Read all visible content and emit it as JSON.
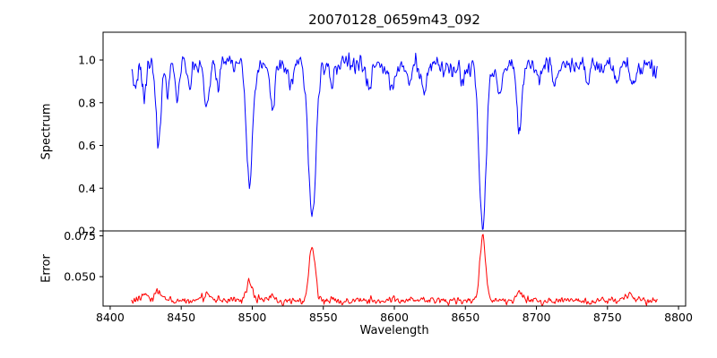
{
  "figure": {
    "title": "20070128_0659m43_092",
    "xlabel": "Wavelength",
    "background_color": "#ffffff",
    "axis_color": "#000000"
  },
  "x_axis": {
    "label": "Wavelength",
    "tick_labels": [
      "8400",
      "8450",
      "8500",
      "8550",
      "8600",
      "8650",
      "8700",
      "8750",
      "8800"
    ],
    "tick_values": [
      8400,
      8450,
      8500,
      8550,
      8600,
      8650,
      8700,
      8750,
      8800
    ],
    "xlim": [
      8395,
      8805
    ]
  },
  "chart_data": [
    {
      "type": "line",
      "name": "spectrum",
      "ylabel": "Spectrum",
      "color": "#0000ff",
      "xlim": [
        8395,
        8805
      ],
      "ylim": [
        0.2,
        1.13
      ],
      "ytick_labels": [
        "0.2",
        "0.4",
        "0.6",
        "0.8",
        "1.0"
      ],
      "ytick_values": [
        0.2,
        0.4,
        0.6,
        0.8,
        1.0
      ],
      "x_start": 8415,
      "x_end": 8785,
      "x_step": 0.5,
      "continuum": 0.975,
      "noise": {
        "seed": 20070128,
        "amplitude": 0.028
      },
      "absorption_lines": [
        {
          "center": 8417.5,
          "depth": 0.1,
          "width": 1.2
        },
        {
          "center": 8424.0,
          "depth": 0.14,
          "width": 1.4
        },
        {
          "center": 8434.0,
          "depth": 0.38,
          "width": 1.6
        },
        {
          "center": 8440.5,
          "depth": 0.12,
          "width": 1.2
        },
        {
          "center": 8447.0,
          "depth": 0.15,
          "width": 1.4
        },
        {
          "center": 8456.0,
          "depth": 0.09,
          "width": 1.2
        },
        {
          "center": 8468.0,
          "depth": 0.2,
          "width": 1.6
        },
        {
          "center": 8476.0,
          "depth": 0.09,
          "width": 1.2
        },
        {
          "center": 8498.0,
          "depth": 0.55,
          "width": 2.2
        },
        {
          "center": 8514.0,
          "depth": 0.21,
          "width": 1.5
        },
        {
          "center": 8527.0,
          "depth": 0.1,
          "width": 1.3
        },
        {
          "center": 8542.1,
          "depth": 0.72,
          "width": 2.6
        },
        {
          "center": 8556.0,
          "depth": 0.08,
          "width": 1.2
        },
        {
          "center": 8582.0,
          "depth": 0.11,
          "width": 1.3
        },
        {
          "center": 8598.0,
          "depth": 0.13,
          "width": 1.4
        },
        {
          "center": 8611.0,
          "depth": 0.1,
          "width": 1.3
        },
        {
          "center": 8621.0,
          "depth": 0.13,
          "width": 1.4
        },
        {
          "center": 8648.0,
          "depth": 0.1,
          "width": 1.3
        },
        {
          "center": 8662.1,
          "depth": 0.75,
          "width": 2.4
        },
        {
          "center": 8674.0,
          "depth": 0.16,
          "width": 1.4
        },
        {
          "center": 8688.0,
          "depth": 0.32,
          "width": 1.7
        },
        {
          "center": 8702.0,
          "depth": 0.08,
          "width": 1.2
        },
        {
          "center": 8712.5,
          "depth": 0.1,
          "width": 1.3
        },
        {
          "center": 8736.0,
          "depth": 0.09,
          "width": 1.3
        },
        {
          "center": 8747.0,
          "depth": 0.07,
          "width": 1.2
        },
        {
          "center": 8757.0,
          "depth": 0.08,
          "width": 1.2
        },
        {
          "center": 8768.0,
          "depth": 0.12,
          "width": 1.4
        }
      ]
    },
    {
      "type": "line",
      "name": "error",
      "ylabel": "Error",
      "color": "#ff0000",
      "xlim": [
        8395,
        8805
      ],
      "ylim": [
        0.032,
        0.078
      ],
      "ytick_labels": [
        "0.050",
        "0.075"
      ],
      "ytick_values": [
        0.05,
        0.075
      ],
      "x_start": 8415,
      "x_end": 8785,
      "x_step": 0.5,
      "baseline": 0.0353,
      "noise": {
        "seed": 659,
        "amplitude": 0.0016
      },
      "peaks": [
        {
          "center": 8424.0,
          "height": 0.004,
          "width": 3.0
        },
        {
          "center": 8434.0,
          "height": 0.006,
          "width": 2.5
        },
        {
          "center": 8468.0,
          "height": 0.004,
          "width": 2.5
        },
        {
          "center": 8498.0,
          "height": 0.012,
          "width": 2.2
        },
        {
          "center": 8514.0,
          "height": 0.004,
          "width": 2.0
        },
        {
          "center": 8542.1,
          "height": 0.033,
          "width": 2.2
        },
        {
          "center": 8662.1,
          "height": 0.0395,
          "width": 2.0
        },
        {
          "center": 8688.0,
          "height": 0.006,
          "width": 2.0
        },
        {
          "center": 8765.0,
          "height": 0.005,
          "width": 2.5
        }
      ]
    }
  ]
}
